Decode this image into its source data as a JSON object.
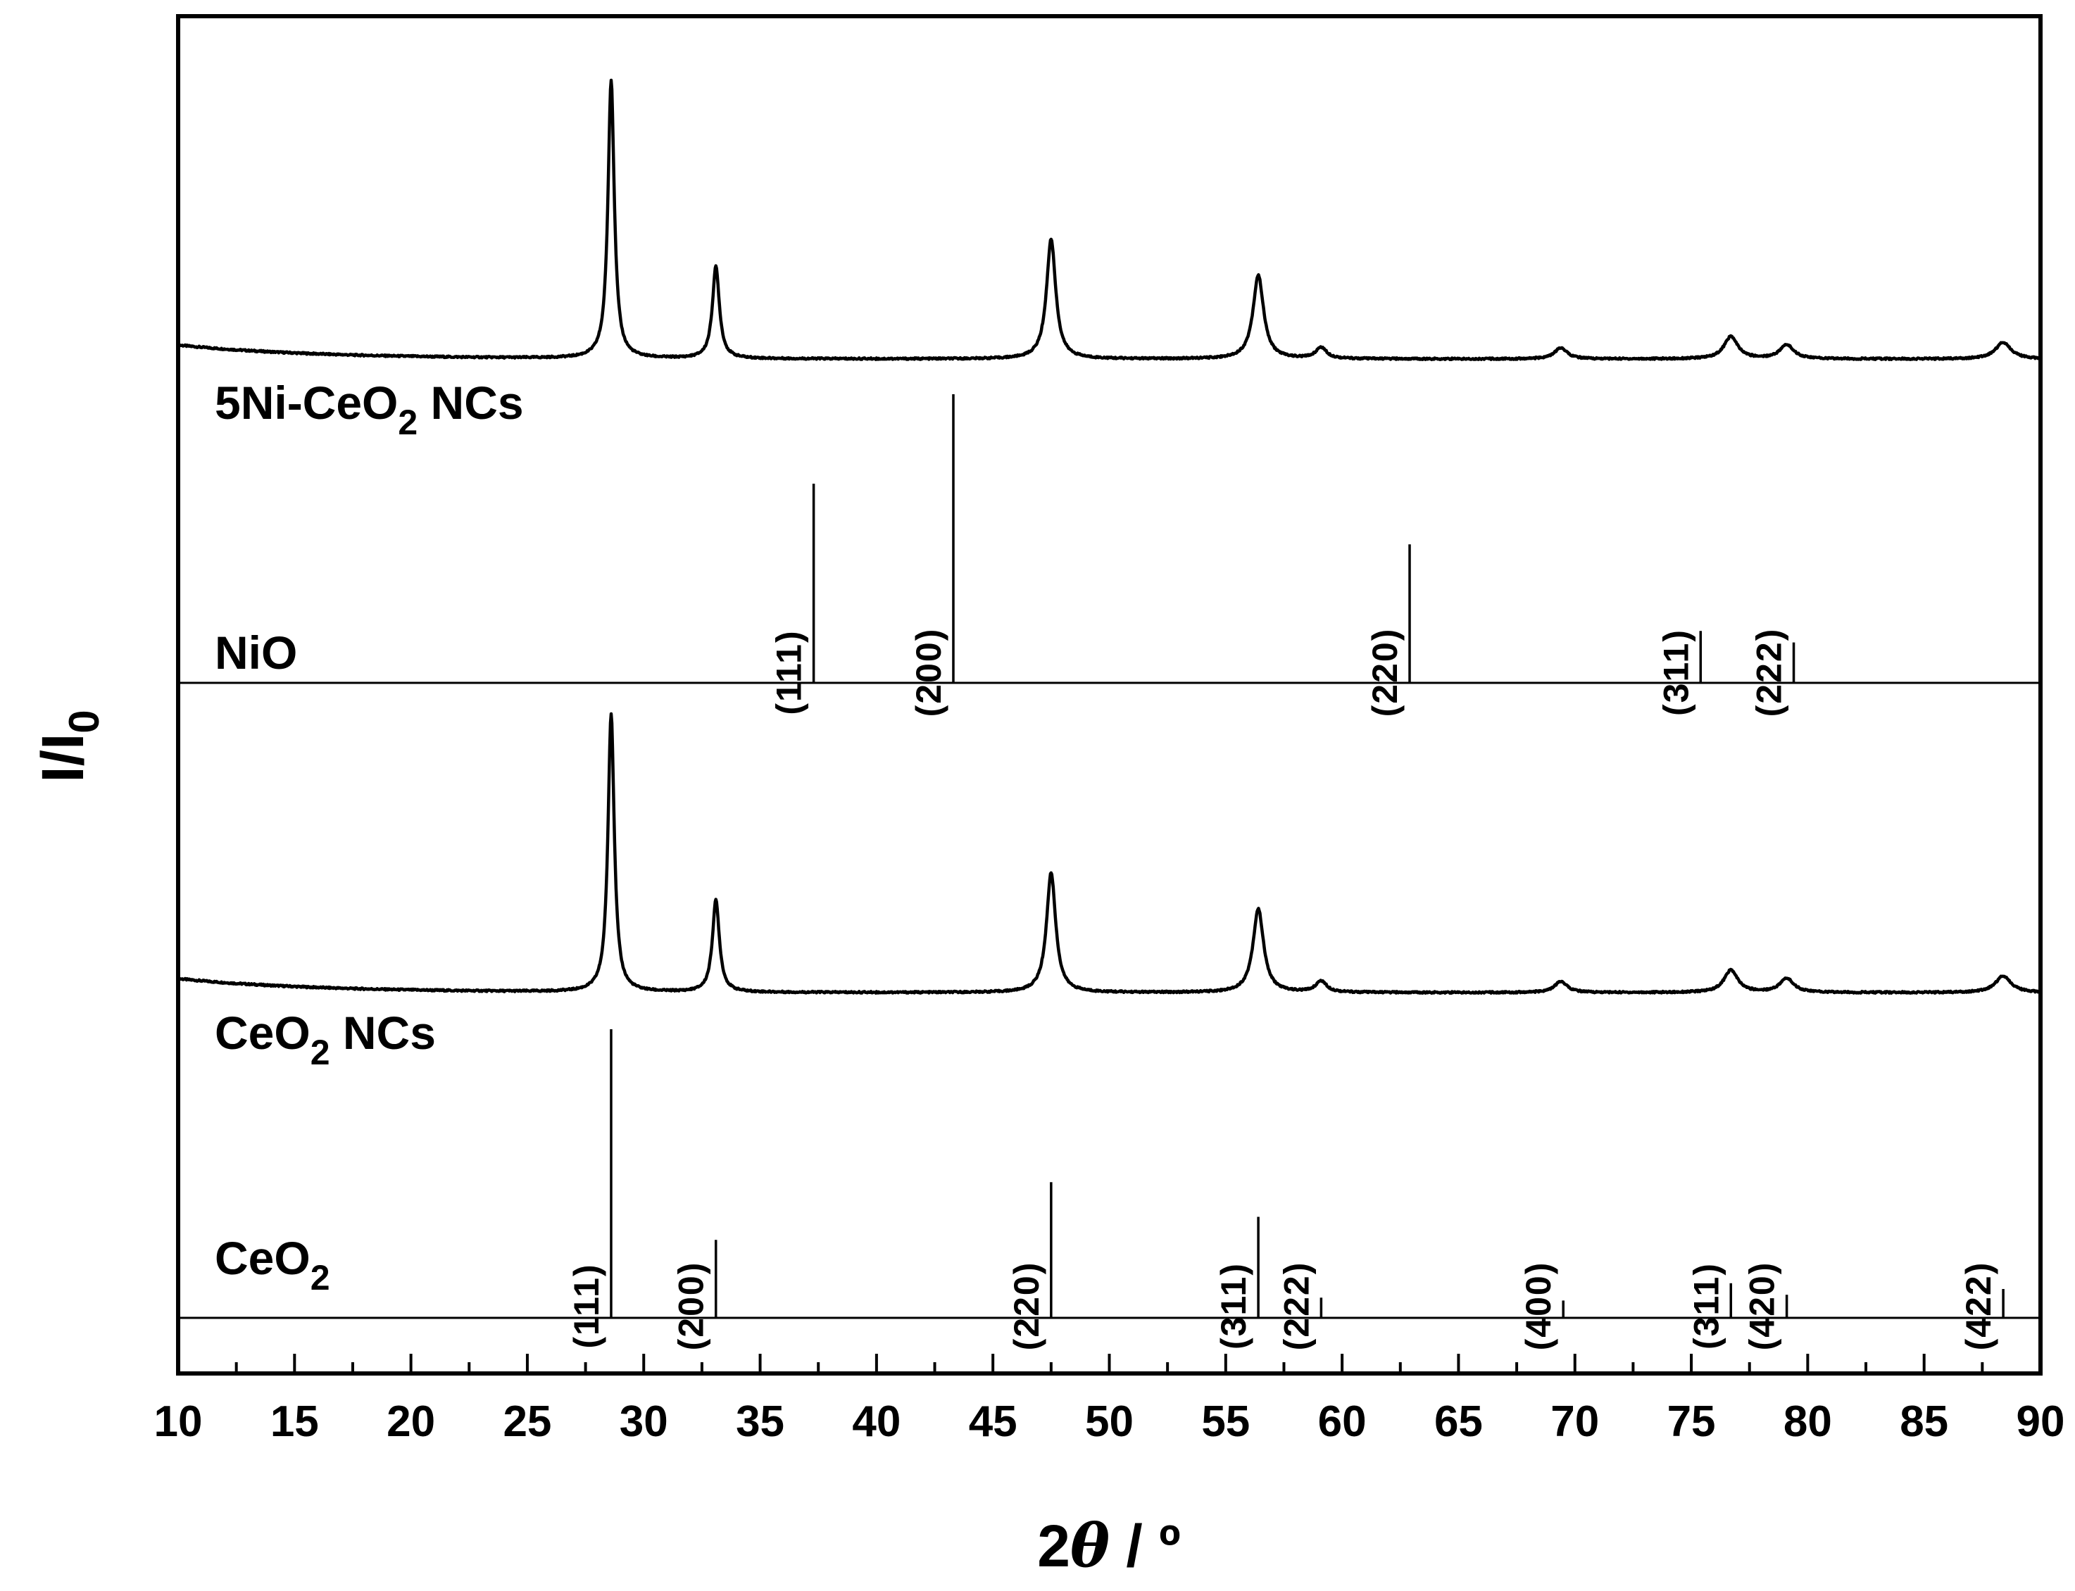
{
  "chart_data": {
    "type": "line",
    "title": "",
    "xlabel": "2θ / º",
    "xlabel_parts": {
      "lead": "2",
      "theta": "θ",
      "unit": " / º"
    },
    "ylabel": "I/I0",
    "ylabel_parts": {
      "base": "I/I",
      "sub": "0"
    },
    "xlim": [
      10,
      90
    ],
    "x_major_ticks": [
      10,
      15,
      20,
      25,
      30,
      35,
      40,
      45,
      50,
      55,
      60,
      65,
      70,
      75,
      80,
      85,
      90
    ],
    "x_tick_labels": [
      "10",
      "15",
      "20",
      "25",
      "30",
      "35",
      "40",
      "45",
      "50",
      "55",
      "60",
      "65",
      "70",
      "75",
      "80",
      "85",
      "90"
    ],
    "y_ticks": "none",
    "grid": false,
    "panels": [
      {
        "id": "5ni",
        "kind": "pattern",
        "label_main": "5Ni-CeO",
        "label_sub": "2",
        "label_tail": " NCs",
        "baseline_left": 0.05,
        "peaks": [
          {
            "x": 28.6,
            "h": 1.0
          },
          {
            "x": 33.1,
            "h": 0.33
          },
          {
            "x": 47.5,
            "h": 0.43
          },
          {
            "x": 56.4,
            "h": 0.3
          },
          {
            "x": 59.1,
            "h": 0.04
          },
          {
            "x": 69.4,
            "h": 0.04
          },
          {
            "x": 76.7,
            "h": 0.08
          },
          {
            "x": 79.1,
            "h": 0.05
          },
          {
            "x": 88.4,
            "h": 0.06
          }
        ]
      },
      {
        "id": "nio",
        "kind": "reference",
        "label_main": "NiO",
        "label_sub": "",
        "label_tail": "",
        "lines": [
          {
            "x": 37.3,
            "h": 0.69,
            "hkl": "(111)"
          },
          {
            "x": 43.3,
            "h": 1.0,
            "hkl": "(200)"
          },
          {
            "x": 62.9,
            "h": 0.48,
            "hkl": "(220)"
          },
          {
            "x": 75.4,
            "h": 0.18,
            "hkl": "(311)"
          },
          {
            "x": 79.4,
            "h": 0.14,
            "hkl": "(222)"
          }
        ]
      },
      {
        "id": "ceo2nc",
        "kind": "pattern",
        "label_main": "CeO",
        "label_sub": "2",
        "label_tail": " NCs",
        "baseline_left": 0.05,
        "peaks": [
          {
            "x": 28.6,
            "h": 1.0
          },
          {
            "x": 33.1,
            "h": 0.33
          },
          {
            "x": 47.5,
            "h": 0.43
          },
          {
            "x": 56.4,
            "h": 0.3
          },
          {
            "x": 59.1,
            "h": 0.04
          },
          {
            "x": 69.4,
            "h": 0.04
          },
          {
            "x": 76.7,
            "h": 0.08
          },
          {
            "x": 79.1,
            "h": 0.05
          },
          {
            "x": 88.4,
            "h": 0.06
          }
        ]
      },
      {
        "id": "ceo2ref",
        "kind": "reference",
        "label_main": "CeO",
        "label_sub": "2",
        "label_tail": "",
        "lines": [
          {
            "x": 28.6,
            "h": 1.0,
            "hkl": "(111)"
          },
          {
            "x": 33.1,
            "h": 0.27,
            "hkl": "(200)"
          },
          {
            "x": 47.5,
            "h": 0.47,
            "hkl": "(220)"
          },
          {
            "x": 56.4,
            "h": 0.35,
            "hkl": "(311)"
          },
          {
            "x": 59.1,
            "h": 0.07,
            "hkl": "(222)"
          },
          {
            "x": 69.5,
            "h": 0.06,
            "hkl": "(400)"
          },
          {
            "x": 76.7,
            "h": 0.12,
            "hkl": "(311)"
          },
          {
            "x": 79.1,
            "h": 0.08,
            "hkl": "(420)"
          },
          {
            "x": 88.4,
            "h": 0.1,
            "hkl": "(422)"
          }
        ]
      }
    ]
  }
}
